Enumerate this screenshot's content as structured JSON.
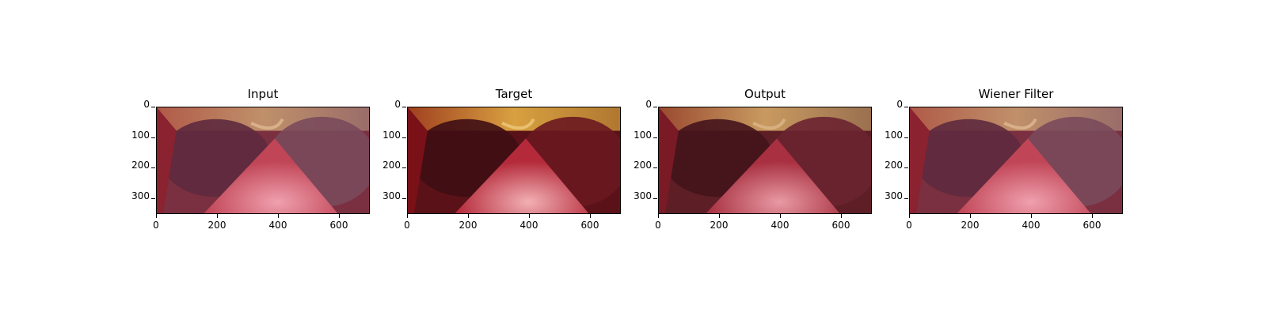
{
  "figure": {
    "panels": [
      {
        "title": "Input",
        "variant": "input"
      },
      {
        "title": "Target",
        "variant": "target"
      },
      {
        "title": "Output",
        "variant": "output"
      },
      {
        "title": "Wiener Filter",
        "variant": "wiener"
      }
    ],
    "axes": {
      "y_ticks": [
        "0",
        "100",
        "200",
        "300"
      ],
      "x_ticks": [
        "0",
        "200",
        "400",
        "600"
      ],
      "x_range": [
        0,
        700
      ],
      "y_range": [
        0,
        350
      ]
    },
    "image_description_colors": {
      "tissue_dark": "#5a1a22",
      "tissue_mid": "#a8303a",
      "tissue_light": "#e07a88",
      "fat_yellow": "#c99a4a"
    }
  }
}
